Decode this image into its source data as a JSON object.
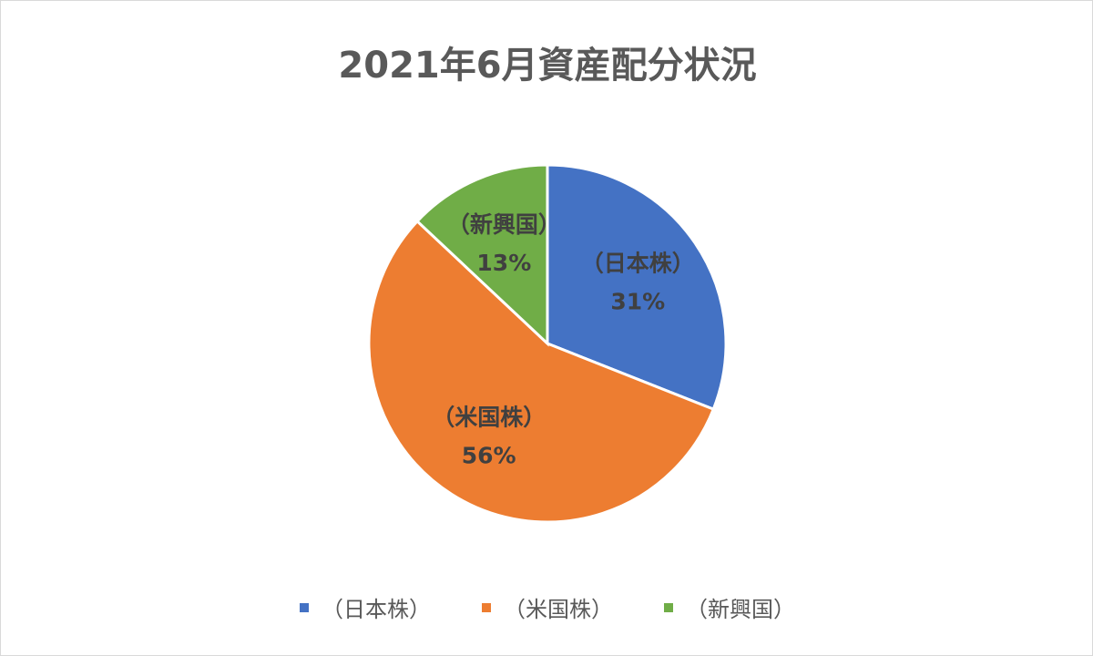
{
  "chart_data": {
    "type": "pie",
    "title": "2021年6月資産配分状況",
    "slices": [
      {
        "label": "（日本株）",
        "value": 31,
        "display": "31%",
        "color": "#4472C4"
      },
      {
        "label": "（米国株）",
        "value": 56,
        "display": "56%",
        "color": "#ED7D31"
      },
      {
        "label": "（新興国）",
        "value": 13,
        "display": "13%",
        "color": "#70AD47"
      }
    ],
    "legend": {
      "position": "bottom"
    }
  }
}
